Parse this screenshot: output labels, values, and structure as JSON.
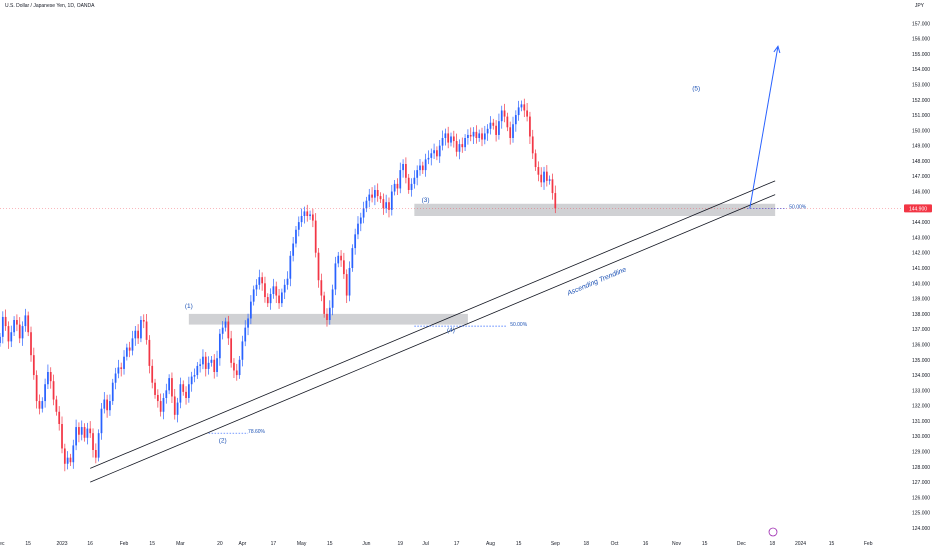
{
  "header": {
    "title": "U.S. Dollar / Japanese Yen, 1D, OANDA",
    "currency": "JPY"
  },
  "price_badge": "144.900",
  "chart_data": {
    "type": "candlestick",
    "title": "U.S. Dollar / Japanese Yen, 1D, OANDA",
    "ylim": [
      124,
      158
    ],
    "y_ticks": [
      "124.000",
      "125.000",
      "126.000",
      "127.000",
      "128.000",
      "129.000",
      "130.000",
      "131.000",
      "132.000",
      "133.000",
      "134.000",
      "135.000",
      "136.000",
      "137.000",
      "138.000",
      "139.000",
      "140.000",
      "141.000",
      "142.000",
      "143.000",
      "144.000",
      "145.000",
      "146.000",
      "147.000",
      "148.000",
      "149.000",
      "150.000",
      "151.000",
      "152.000",
      "153.000",
      "154.000",
      "155.000",
      "156.000",
      "157.000"
    ],
    "x_ticks": [
      {
        "label": "Dec",
        "t": 0
      },
      {
        "label": "15",
        "t": 10
      },
      {
        "label": "2023",
        "t": 22
      },
      {
        "label": "16",
        "t": 32
      },
      {
        "label": "Feb",
        "t": 44
      },
      {
        "label": "15",
        "t": 54
      },
      {
        "label": "Mar",
        "t": 64
      },
      {
        "label": "20",
        "t": 78
      },
      {
        "label": "Apr",
        "t": 86
      },
      {
        "label": "17",
        "t": 97
      },
      {
        "label": "May",
        "t": 107
      },
      {
        "label": "15",
        "t": 117
      },
      {
        "label": "Jun",
        "t": 130
      },
      {
        "label": "19",
        "t": 142
      },
      {
        "label": "Jul",
        "t": 151
      },
      {
        "label": "17",
        "t": 162
      },
      {
        "label": "Aug",
        "t": 174
      },
      {
        "label": "15",
        "t": 184
      },
      {
        "label": "Sep",
        "t": 197
      },
      {
        "label": "18",
        "t": 208
      },
      {
        "label": "Oct",
        "t": 218
      },
      {
        "label": "16",
        "t": 229
      },
      {
        "label": "Nov",
        "t": 240
      },
      {
        "label": "15",
        "t": 250
      },
      {
        "label": "Dec",
        "t": 263
      },
      {
        "label": "18",
        "t": 274
      },
      {
        "label": "2024",
        "t": 284
      },
      {
        "label": "15",
        "t": 295
      },
      {
        "label": "Feb",
        "t": 308
      }
    ],
    "x_range": [
      0,
      320
    ],
    "closes": [
      136.5,
      137.8,
      137.2,
      136.2,
      136.8,
      137.6,
      137.3,
      136.4,
      137.2,
      137.9,
      136.8,
      135.3,
      134.0,
      132.3,
      131.8,
      132.3,
      133.4,
      134.2,
      133.6,
      132.4,
      131.6,
      130.8,
      129.2,
      128.2,
      128.6,
      128.3,
      129.4,
      130.6,
      130.1,
      130.6,
      129.9,
      130.5,
      130.2,
      129.1,
      128.6,
      130.2,
      131.8,
      132.4,
      131.7,
      132.3,
      133.5,
      134.1,
      134.5,
      134.4,
      135.2,
      135.8,
      135.6,
      136.4,
      136.9,
      136.4,
      137.6,
      137.5,
      136.3,
      134.6,
      133.5,
      132.7,
      132.3,
      131.6,
      132.5,
      133.0,
      133.8,
      132.6,
      131.4,
      132.2,
      133.4,
      132.9,
      132.5,
      133.4,
      133.9,
      134.0,
      134.6,
      134.7,
      135.2,
      134.4,
      134.8,
      135.0,
      134.2,
      135.1,
      136.7,
      137.1,
      137.5,
      136.4,
      134.8,
      134.3,
      134.0,
      135.0,
      136.2,
      137.1,
      137.7,
      138.8,
      139.6,
      139.9,
      140.4,
      140.0,
      139.1,
      138.7,
      139.3,
      139.8,
      139.2,
      138.7,
      139.4,
      139.9,
      140.3,
      141.8,
      142.6,
      143.5,
      144.0,
      144.4,
      144.7,
      144.4,
      144.5,
      144.1,
      142.0,
      140.2,
      139.2,
      138.0,
      137.6,
      138.4,
      139.6,
      141.3,
      141.8,
      141.5,
      140.6,
      139.2,
      141.0,
      142.3,
      143.2,
      143.9,
      144.3,
      144.9,
      145.4,
      145.8,
      145.6,
      146.1,
      145.7,
      145.5,
      144.9,
      145.3,
      144.8,
      146.0,
      146.5,
      146.2,
      147.4,
      147.8,
      146.9,
      146.1,
      146.5,
      146.9,
      147.4,
      147.7,
      147.4,
      148.1,
      148.2,
      148.5,
      148.7,
      148.3,
      149.0,
      149.5,
      149.8,
      149.2,
      149.6,
      149.3,
      148.6,
      149.1,
      148.9,
      149.5,
      149.7,
      149.6,
      149.9,
      149.5,
      149.8,
      149.4,
      149.8,
      150.1,
      150.5,
      150.3,
      149.7,
      150.6,
      151.3,
      150.9,
      150.2,
      149.5,
      150.4,
      151.0,
      151.5,
      151.7,
      151.3,
      150.9,
      149.6,
      148.5,
      147.6,
      147.1,
      146.6,
      147.3,
      146.7,
      146.8,
      145.9,
      144.9
    ],
    "series": [
      {
        "name": "Ascending Trendline",
        "x_start": 32,
        "y_start": 127.0,
        "x_end": 275,
        "y_end": 145.8
      }
    ],
    "annotations": [
      {
        "text": "(1)",
        "x": 67,
        "y": 138.4
      },
      {
        "text": "(2)",
        "x": 79,
        "y": 129.6
      },
      {
        "text": "(3)",
        "x": 151,
        "y": 145.3
      },
      {
        "text": "(4)",
        "x": 160,
        "y": 136.8
      },
      {
        "text": "(5)",
        "x": 247,
        "y": 152.6
      },
      {
        "text": "78.60%",
        "x": 88,
        "y": 130.2
      },
      {
        "text": "50.00%",
        "x": 181,
        "y": 137.2
      },
      {
        "text": "50.00%",
        "x": 280,
        "y": 144.9
      },
      {
        "text": "Ascending Trendline",
        "x": 212,
        "y": 140.0
      }
    ],
    "zones": [
      {
        "x_start": 67,
        "x_end": 166,
        "y_low": 137.3,
        "y_high": 138.0
      },
      {
        "x_start": 147,
        "x_end": 275,
        "y_low": 144.4,
        "y_high": 145.2
      }
    ],
    "projection": {
      "x_start": 266,
      "y_start": 144.9,
      "x_end": 276,
      "y_end": 155.5
    },
    "colors": {
      "up": "#2962ff",
      "down": "#f23645",
      "trend": "#131722",
      "zone": "#c8c9cc",
      "annotation": "#1e53b5",
      "price_line": "#f23645"
    },
    "grid": false,
    "legend": "none"
  }
}
